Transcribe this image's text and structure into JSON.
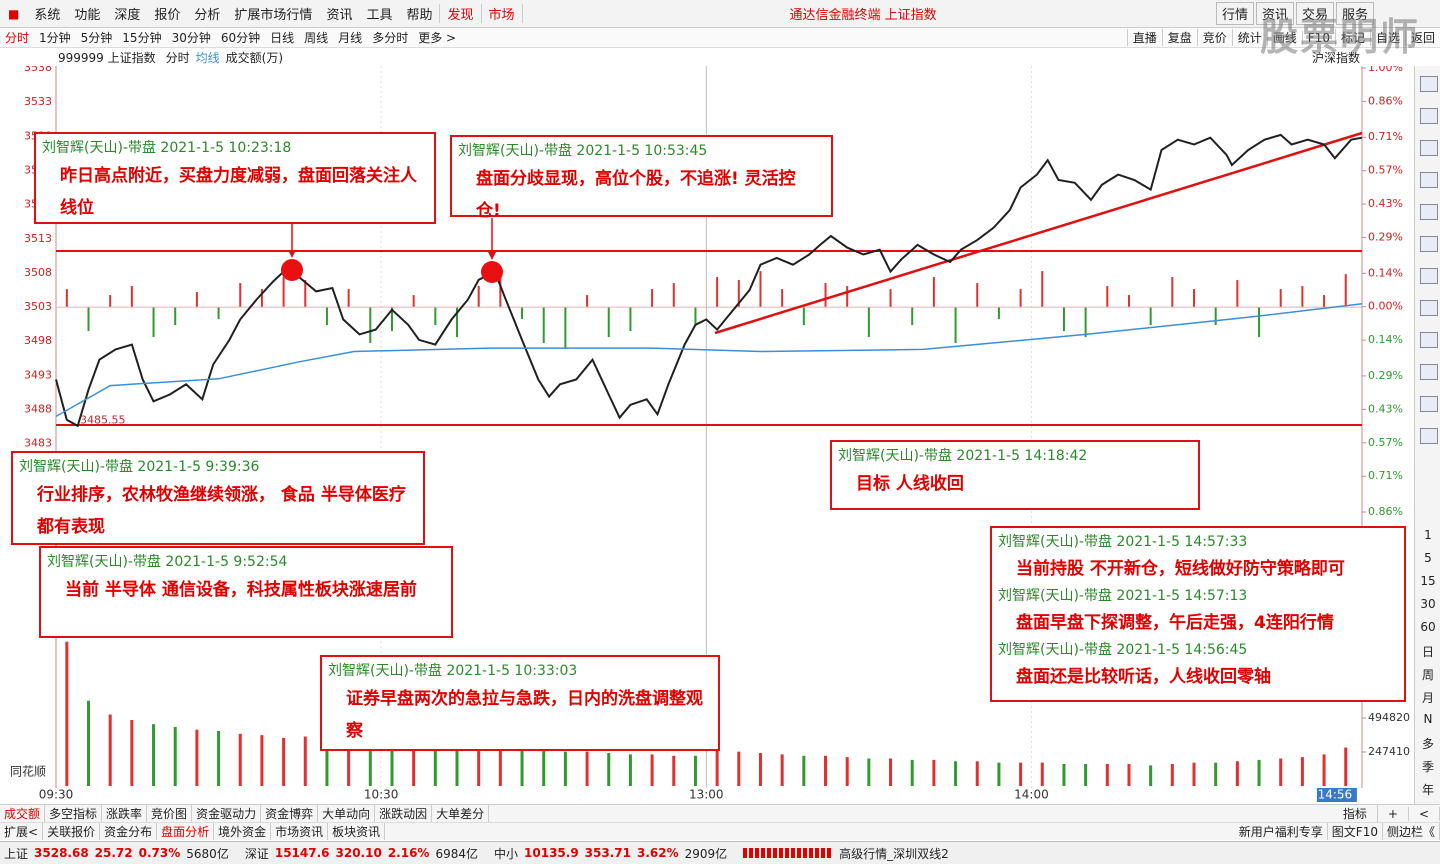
{
  "menu": {
    "items": [
      "系统",
      "功能",
      "深度",
      "报价",
      "分析",
      "扩展市场行情",
      "资讯",
      "工具",
      "帮助"
    ],
    "discover": "发现",
    "market": "市场",
    "title": "通达信金融终端 上证指数",
    "buttons": [
      "行情",
      "资讯",
      "交易",
      "服务"
    ],
    "watermark": "股票明师"
  },
  "toolbar": {
    "periods": [
      "分时",
      "1分钟",
      "5分钟",
      "15分钟",
      "30分钟",
      "60分钟",
      "日线",
      "周线",
      "月线",
      "多分时",
      "更多 >"
    ],
    "tools": [
      "直播",
      "复盘",
      "竞价",
      "统计",
      "画线",
      "F10",
      "标记",
      "自选",
      "返回"
    ]
  },
  "info": {
    "code": "999999 上证指数",
    "unit": "成交额(万)",
    "right": "沪深指数"
  },
  "chart_data": {
    "type": "line",
    "xlim": [
      0,
      241
    ],
    "ylim": [
      3473,
      3538
    ],
    "y2lim": [
      -0.86,
      1.0
    ],
    "xticks": [
      {
        "value": 0,
        "label": "09:30"
      },
      {
        "value": 60,
        "label": "10:30"
      },
      {
        "value": 120,
        "label": "13:00"
      },
      {
        "value": 180,
        "label": "14:00"
      },
      {
        "value": 236,
        "label": "14:56"
      }
    ],
    "yticks": [
      3538,
      3533,
      3528,
      3523,
      3518,
      3513,
      3508,
      3503,
      3498,
      3493,
      3488,
      3483
    ],
    "y2ticks": [
      {
        "value": 1.0,
        "label": "1.00%"
      },
      {
        "value": 0.86,
        "label": "0.86%"
      },
      {
        "value": 0.71,
        "label": "0.71%"
      },
      {
        "value": 0.57,
        "label": "0.57%"
      },
      {
        "value": 0.43,
        "label": "0.43%"
      },
      {
        "value": 0.29,
        "label": "0.29%"
      },
      {
        "value": 0.14,
        "label": "0.14%"
      },
      {
        "value": 0,
        "label": "0.00%"
      },
      {
        "value": -0.14,
        "label": "0.14%"
      },
      {
        "value": -0.29,
        "label": "0.29%"
      },
      {
        "value": -0.43,
        "label": "0.43%"
      },
      {
        "value": -0.57,
        "label": "0.57%"
      },
      {
        "value": -0.71,
        "label": "0.71%"
      },
      {
        "value": -0.86,
        "label": "0.86%"
      }
    ],
    "low": 3485.55,
    "series": [
      {
        "name": "分时",
        "color": "#202020",
        "x": [
          0,
          2,
          4,
          6,
          8,
          11,
          14,
          16,
          18,
          21,
          24,
          27,
          29,
          32,
          34,
          37,
          40,
          42,
          45,
          48,
          51,
          53,
          56,
          59,
          62,
          65,
          67,
          70,
          73,
          76,
          78,
          81,
          83,
          86,
          89,
          91,
          93,
          96,
          99,
          102,
          104,
          106,
          109,
          111,
          113,
          116,
          118,
          120,
          122,
          125,
          128,
          130,
          133,
          136,
          139,
          141,
          143,
          146,
          149,
          152,
          154,
          156,
          159,
          162,
          165,
          167,
          170,
          173,
          176,
          178,
          181,
          183,
          185,
          188,
          191,
          193,
          196,
          199,
          202,
          204,
          207,
          210,
          213,
          216,
          217,
          220,
          223,
          226,
          228,
          231,
          234,
          236,
          239,
          241
        ],
        "values": [
          3492.4,
          3486.5,
          3485.6,
          3490.9,
          3495.3,
          3496.8,
          3497.5,
          3492.4,
          3489.2,
          3490.2,
          3491.7,
          3489.5,
          3494.6,
          3498.2,
          3501.2,
          3504.1,
          3506.7,
          3508.2,
          3507.3,
          3505.3,
          3505.8,
          3501.2,
          3499.0,
          3499.7,
          3502.6,
          3500.4,
          3498.2,
          3497.5,
          3501.2,
          3504.1,
          3507.0,
          3508.2,
          3504.1,
          3498.2,
          3492.4,
          3489.9,
          3491.7,
          3492.4,
          3495.3,
          3490.2,
          3486.8,
          3488.7,
          3489.5,
          3487.3,
          3491.7,
          3497.5,
          3500.4,
          3501.2,
          3499.7,
          3502.6,
          3505.5,
          3509.2,
          3510.2,
          3509.2,
          3510.7,
          3512.1,
          3513.4,
          3511.7,
          3510.7,
          3511.4,
          3508.2,
          3510.0,
          3512.1,
          3510.7,
          3509.6,
          3511.4,
          3512.8,
          3514.6,
          3517.2,
          3520.5,
          3522.4,
          3524.5,
          3521.6,
          3521.2,
          3518.7,
          3520.9,
          3522.4,
          3521.6,
          3520.2,
          3526.0,
          3527.5,
          3526.8,
          3527.8,
          3525.3,
          3523.8,
          3526.0,
          3527.5,
          3528.2,
          3526.8,
          3527.5,
          3526.8,
          3524.8,
          3527.5,
          3527.8
        ]
      },
      {
        "name": "均线",
        "color": "#3a8fd8",
        "x": [
          0,
          10,
          30,
          45,
          55,
          80,
          110,
          130,
          160,
          190,
          220,
          241
        ],
        "values": [
          3487.0,
          3491.5,
          3492.5,
          3495.0,
          3496.5,
          3497.0,
          3497.0,
          3496.5,
          3496.8,
          3499.0,
          3501.5,
          3503.5
        ]
      }
    ],
    "strength": {
      "ylim": [
        -1,
        1
      ],
      "up_color": "#e03030",
      "down_color": "#2f9a2f",
      "values": [
        0.3,
        -0.4,
        0.2,
        0.35,
        -0.5,
        -0.3,
        0.25,
        -0.2,
        0.4,
        0.3,
        0.5,
        0.45,
        -0.3,
        0.3,
        -0.6,
        -0.4,
        0.2,
        -0.3,
        -0.5,
        0.35,
        0.5,
        -0.2,
        -0.6,
        -0.7,
        0.2,
        -0.5,
        -0.4,
        0.3,
        0.4,
        -0.3,
        0.5,
        0.45,
        0.6,
        0.3,
        -0.3,
        0.4,
        0.35,
        -0.5,
        0.3,
        -0.3,
        0.5,
        -0.6,
        0.4,
        -0.2,
        0.3,
        0.6,
        -0.4,
        -0.5,
        0.35,
        0.2,
        -0.3,
        0.5,
        0.3,
        -0.3,
        0.45,
        -0.5,
        0.3,
        0.35,
        0.2,
        0.55
      ]
    },
    "volume": {
      "label": "同花顺",
      "ylim": [
        0,
        989640
      ],
      "yticks": [
        494820,
        247410
      ],
      "values": [
        1050000,
        620000,
        520000,
        480000,
        450000,
        430000,
        410000,
        400000,
        380000,
        370000,
        350000,
        360000,
        340000,
        330000,
        320000,
        310000,
        300000,
        300000,
        290000,
        280000,
        270000,
        280000,
        260000,
        250000,
        250000,
        240000,
        230000,
        230000,
        220000,
        220000,
        260000,
        250000,
        240000,
        230000,
        220000,
        220000,
        210000,
        200000,
        200000,
        190000,
        190000,
        180000,
        180000,
        170000,
        170000,
        170000,
        160000,
        160000,
        160000,
        160000,
        150000,
        160000,
        170000,
        170000,
        180000,
        190000,
        200000,
        210000,
        230000,
        280000
      ]
    }
  },
  "annotations": [
    {
      "entries": [
        {
          "header": "刘智辉(天山)-带盘 2021-1-5 10:23:18",
          "text": "昨日高点附近，买盘力度减弱，盘面回落关注人线位"
        }
      ]
    },
    {
      "entries": [
        {
          "header": "刘智辉(天山)-带盘 2021-1-5 10:53:45",
          "text": "盘面分歧显现，高位个股，不追涨! 灵活控仓!"
        }
      ]
    },
    {
      "entries": [
        {
          "header": "刘智辉(天山)-带盘 2021-1-5 9:39:36",
          "text": "行业排序，农林牧渔继续领涨， 食品 半导体医疗都有表现"
        }
      ]
    },
    {
      "entries": [
        {
          "header": "刘智辉(天山)-带盘 2021-1-5 9:52:54",
          "text": "当前 半导体 通信设备，科技属性板块涨速居前"
        }
      ]
    },
    {
      "entries": [
        {
          "header": "刘智辉(天山)-带盘 2021-1-5 10:33:03",
          "text": "证券早盘两次的急拉与急跌，日内的洗盘调整观察"
        }
      ]
    },
    {
      "entries": [
        {
          "header": "刘智辉(天山)-带盘 2021-1-5 14:18:42",
          "text": "目标 人线收回"
        }
      ]
    },
    {
      "entries": [
        {
          "header": "刘智辉(天山)-带盘 2021-1-5 14:57:33",
          "text": "当前持股 不开新仓，短线做好防守策略即可"
        },
        {
          "header": "刘智辉(天山)-带盘 2021-1-5 14:57:13",
          "text": "盘面早盘下探调整，午后走强，4连阳行情"
        },
        {
          "header": "刘智辉(天山)-带盘 2021-1-5 14:56:45",
          "text": "盘面还是比较听话，人线收回零轴"
        }
      ]
    }
  ],
  "tabs": {
    "row1": [
      "成交额",
      "多空指标",
      "涨跌率",
      "竞价图",
      "资金驱动力",
      "资金博弈",
      "大单动向",
      "涨跌动因",
      "大单差分"
    ],
    "row1_right": [
      "指标",
      "+",
      "<"
    ],
    "row2": [
      "扩展<",
      "关联报价",
      "资金分布",
      "盘面分析",
      "境外资金",
      "市场资讯",
      "板块资讯"
    ],
    "row2_right": [
      "新用户福利专享",
      "图文F10",
      "侧边栏《"
    ]
  },
  "side": {
    "labels": [
      "1",
      "5",
      "15",
      "30",
      "60",
      "日",
      "周",
      "月",
      "N",
      "多",
      "季",
      "年"
    ]
  },
  "status": {
    "indices": [
      {
        "name": "上证",
        "price": "3528.68",
        "change": "25.72",
        "pct": "0.73%",
        "amount": "5680亿"
      },
      {
        "name": "深证",
        "price": "15147.6",
        "change": "320.10",
        "pct": "2.16%",
        "amount": "6984亿"
      },
      {
        "name": "中小",
        "price": "10135.9",
        "change": "353.71",
        "pct": "3.62%",
        "amount": "2909亿"
      }
    ],
    "line": "高级行情_深圳双线2"
  }
}
